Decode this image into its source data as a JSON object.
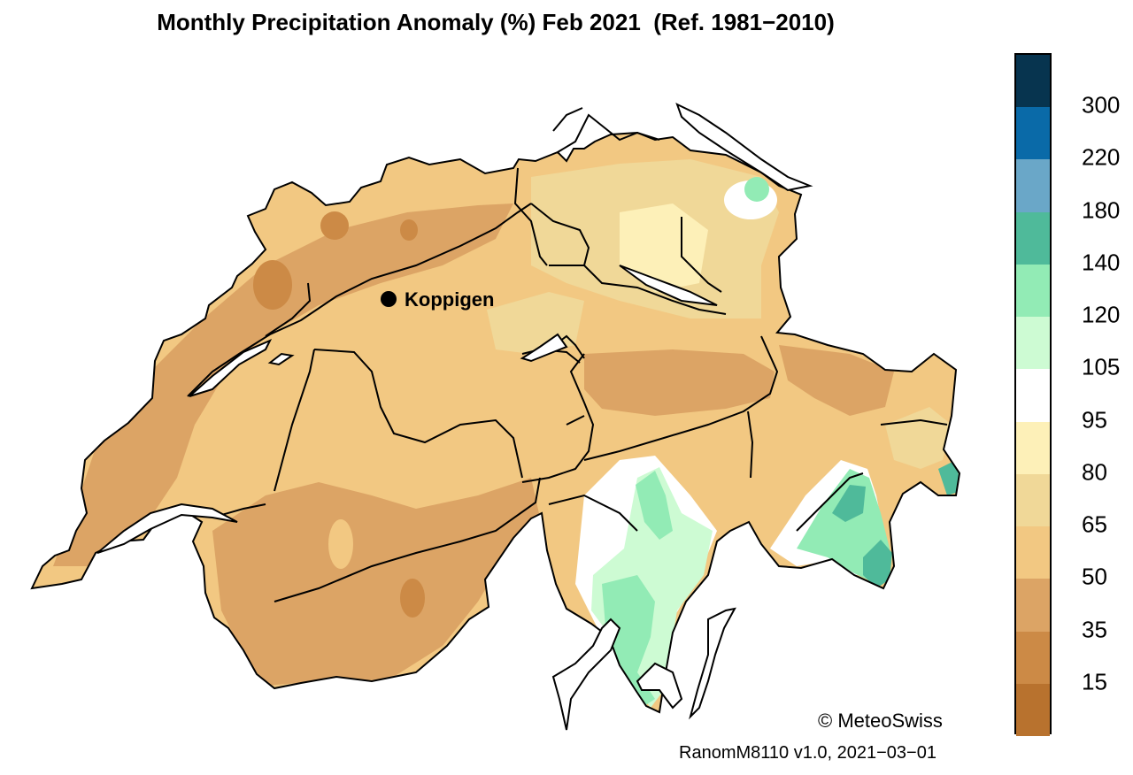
{
  "title": "Monthly Precipitation Anomaly (%) Feb 2021  (Ref. 1981−2010)",
  "station": {
    "name": "Koppigen"
  },
  "copyright": "© MeteoSwiss",
  "version": "RanomM8110 v1.0, 2021−03−01",
  "legend": {
    "classes": [
      {
        "color": "#07344f"
      },
      {
        "color": "#0a6aa8"
      },
      {
        "color": "#6aa7c8"
      },
      {
        "color": "#4fba9a"
      },
      {
        "color": "#92ebb5"
      },
      {
        "color": "#cdfbd3"
      },
      {
        "color": "#ffffff"
      },
      {
        "color": "#fdf0b8"
      },
      {
        "color": "#f0d898"
      },
      {
        "color": "#f2c882"
      },
      {
        "color": "#dca465"
      },
      {
        "color": "#cc8a46"
      },
      {
        "color": "#b8722e"
      }
    ],
    "ticks": [
      "300",
      "220",
      "180",
      "140",
      "120",
      "105",
      "95",
      "80",
      "65",
      "50",
      "35",
      "15"
    ]
  }
}
